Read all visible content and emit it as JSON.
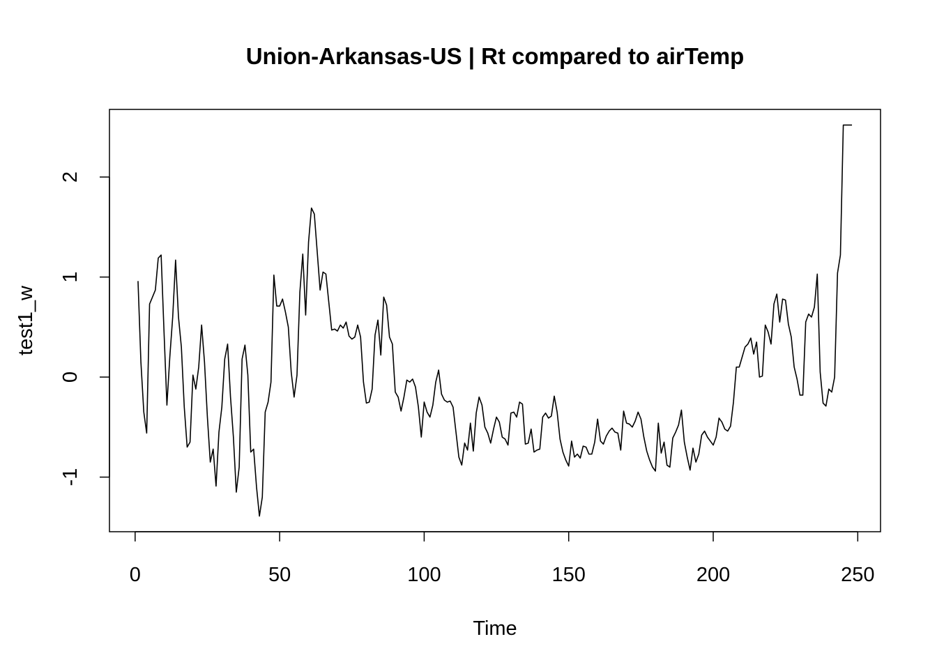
{
  "chart_data": {
    "type": "line",
    "title": "Union-Arkansas-US | Rt compared to airTemp",
    "xlabel": "Time",
    "ylabel": "test1_w",
    "color": "#000000",
    "xlim": [
      -8.88,
      257.88
    ],
    "ylim": [
      -1.546,
      2.676
    ],
    "xticks": [
      0,
      50,
      100,
      150,
      200,
      250
    ],
    "yticks": [
      -1,
      0,
      1,
      2
    ],
    "x": [
      1,
      2,
      3,
      4,
      5,
      6,
      7,
      8,
      9,
      10,
      11,
      12,
      13,
      14,
      15,
      16,
      17,
      18,
      19,
      20,
      21,
      22,
      23,
      24,
      25,
      26,
      27,
      28,
      29,
      30,
      31,
      32,
      33,
      34,
      35,
      36,
      37,
      38,
      39,
      40,
      41,
      42,
      43,
      44,
      45,
      46,
      47,
      48,
      49,
      50,
      51,
      52,
      53,
      54,
      55,
      56,
      57,
      58,
      59,
      60,
      61,
      62,
      63,
      64,
      65,
      66,
      67,
      68,
      69,
      70,
      71,
      72,
      73,
      74,
      75,
      76,
      77,
      78,
      79,
      80,
      81,
      82,
      83,
      84,
      85,
      86,
      87,
      88,
      89,
      90,
      91,
      92,
      93,
      94,
      95,
      96,
      97,
      98,
      99,
      100,
      101,
      102,
      103,
      104,
      105,
      106,
      107,
      108,
      109,
      110,
      111,
      112,
      113,
      114,
      115,
      116,
      117,
      118,
      119,
      120,
      121,
      122,
      123,
      124,
      125,
      126,
      127,
      128,
      129,
      130,
      131,
      132,
      133,
      134,
      135,
      136,
      137,
      138,
      139,
      140,
      141,
      142,
      143,
      144,
      145,
      146,
      147,
      148,
      149,
      150,
      151,
      152,
      153,
      154,
      155,
      156,
      157,
      158,
      159,
      160,
      161,
      162,
      163,
      164,
      165,
      166,
      167,
      168,
      169,
      170,
      171,
      172,
      173,
      174,
      175,
      176,
      177,
      178,
      179,
      180,
      181,
      182,
      183,
      184,
      185,
      186,
      187,
      188,
      189,
      190,
      191,
      192,
      193,
      194,
      195,
      196,
      197,
      198,
      199,
      200,
      201,
      202,
      203,
      204,
      205,
      206,
      207,
      208,
      209,
      210,
      211,
      212,
      213,
      214,
      215,
      216,
      217,
      218,
      219,
      220,
      221,
      222,
      223,
      224,
      225,
      226,
      227,
      228,
      229,
      230,
      231,
      232,
      233,
      234,
      235,
      236,
      237,
      238,
      239,
      240,
      241,
      242,
      243,
      244,
      245,
      246,
      247,
      248
    ],
    "values": [
      0.96,
      0.15,
      -0.35,
      -0.56,
      0.73,
      0.8,
      0.87,
      1.19,
      1.22,
      0.45,
      -0.28,
      0.2,
      0.6,
      1.17,
      0.6,
      0.3,
      -0.3,
      -0.7,
      -0.65,
      0.02,
      -0.12,
      0.1,
      0.52,
      0.15,
      -0.4,
      -0.85,
      -0.72,
      -1.09,
      -0.55,
      -0.3,
      0.18,
      0.33,
      -0.2,
      -0.6,
      -1.15,
      -0.9,
      0.18,
      0.32,
      0.02,
      -0.75,
      -0.72,
      -1.1,
      -1.39,
      -1.2,
      -0.35,
      -0.25,
      -0.05,
      1.02,
      0.71,
      0.71,
      0.78,
      0.65,
      0.5,
      0.05,
      -0.2,
      0.02,
      0.85,
      1.23,
      0.62,
      1.35,
      1.69,
      1.63,
      1.25,
      0.87,
      1.05,
      1.03,
      0.75,
      0.47,
      0.48,
      0.46,
      0.52,
      0.49,
      0.55,
      0.41,
      0.38,
      0.4,
      0.52,
      0.4,
      -0.05,
      -0.26,
      -0.25,
      -0.12,
      0.42,
      0.57,
      0.22,
      0.8,
      0.72,
      0.4,
      0.33,
      -0.15,
      -0.2,
      -0.34,
      -0.2,
      -0.03,
      -0.05,
      -0.02,
      -0.1,
      -0.3,
      -0.6,
      -0.25,
      -0.35,
      -0.4,
      -0.28,
      -0.05,
      0.07,
      -0.17,
      -0.23,
      -0.25,
      -0.24,
      -0.3,
      -0.55,
      -0.8,
      -0.88,
      -0.66,
      -0.73,
      -0.46,
      -0.74,
      -0.36,
      -0.2,
      -0.28,
      -0.5,
      -0.56,
      -0.66,
      -0.52,
      -0.4,
      -0.45,
      -0.6,
      -0.62,
      -0.68,
      -0.36,
      -0.35,
      -0.4,
      -0.25,
      -0.27,
      -0.67,
      -0.66,
      -0.52,
      -0.75,
      -0.73,
      -0.72,
      -0.4,
      -0.36,
      -0.41,
      -0.39,
      -0.19,
      -0.35,
      -0.62,
      -0.75,
      -0.83,
      -0.89,
      -0.64,
      -0.8,
      -0.77,
      -0.81,
      -0.69,
      -0.7,
      -0.77,
      -0.77,
      -0.65,
      -0.42,
      -0.64,
      -0.67,
      -0.59,
      -0.54,
      -0.51,
      -0.55,
      -0.56,
      -0.73,
      -0.34,
      -0.46,
      -0.47,
      -0.5,
      -0.44,
      -0.35,
      -0.42,
      -0.6,
      -0.74,
      -0.83,
      -0.9,
      -0.94,
      -0.46,
      -0.76,
      -0.65,
      -0.88,
      -0.9,
      -0.61,
      -0.55,
      -0.48,
      -0.33,
      -0.65,
      -0.8,
      -0.93,
      -0.71,
      -0.85,
      -0.77,
      -0.58,
      -0.54,
      -0.6,
      -0.64,
      -0.68,
      -0.6,
      -0.41,
      -0.45,
      -0.52,
      -0.54,
      -0.49,
      -0.25,
      0.1,
      0.1,
      0.2,
      0.3,
      0.33,
      0.39,
      0.23,
      0.35,
      0.0,
      0.01,
      0.52,
      0.45,
      0.33,
      0.73,
      0.83,
      0.55,
      0.78,
      0.77,
      0.53,
      0.4,
      0.1,
      -0.02,
      -0.18,
      -0.18,
      0.55,
      0.63,
      0.6,
      0.7,
      1.03,
      0.05,
      -0.26,
      -0.29,
      -0.12,
      -0.15,
      0.0,
      1.04,
      1.22,
      2.52,
      2.52,
      2.52,
      2.52
    ]
  }
}
